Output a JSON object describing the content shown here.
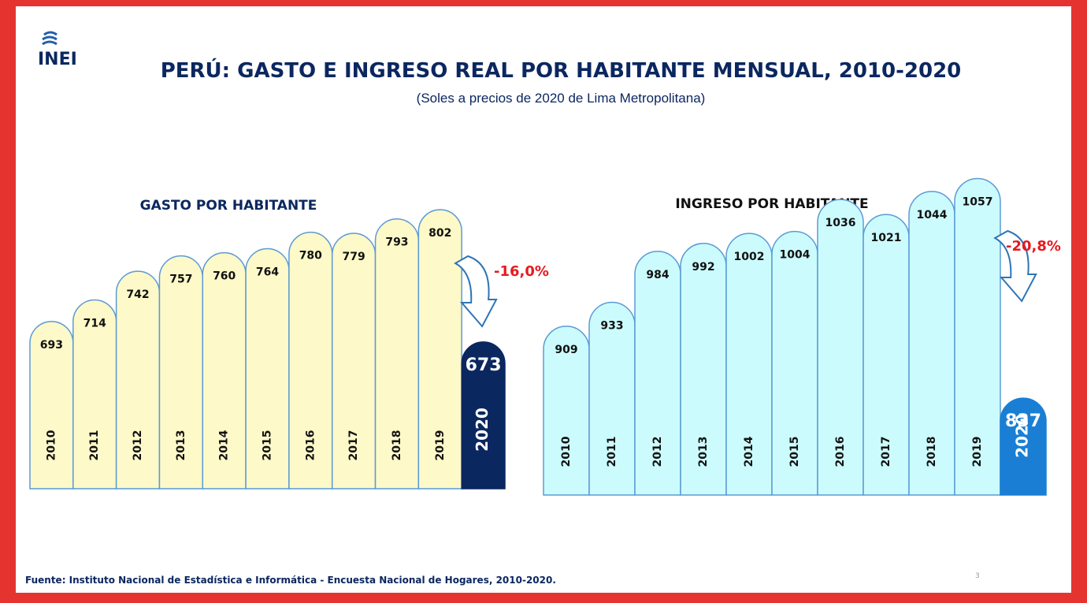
{
  "logo": "INEI",
  "title": "PERÚ: GASTO E INGRESO REAL POR HABITANTE MENSUAL, 2010-2020",
  "subtitle": "(Soles a precios de 2020 de Lima Metropolitana)",
  "footer": "Fuente: Instituto Nacional de Estadística e Informática - Encuesta Nacional de Hogares, 2010-2020.",
  "page_number": "3",
  "chart_data": [
    {
      "type": "bar",
      "title": "GASTO POR HABITANTE",
      "categories": [
        "2010",
        "2011",
        "2012",
        "2013",
        "2014",
        "2015",
        "2016",
        "2017",
        "2018",
        "2019",
        "2020"
      ],
      "values": [
        693,
        714,
        742,
        757,
        760,
        764,
        780,
        779,
        793,
        802,
        673
      ],
      "colors": [
        "#fdf9c8",
        "#fdf9c8",
        "#fdf9c8",
        "#fdf9c8",
        "#fdf9c8",
        "#fdf9c8",
        "#fdf9c8",
        "#fdf9c8",
        "#fdf9c8",
        "#fdf9c8",
        "#0b2760"
      ],
      "ylim": [
        530,
        822
      ],
      "annotation": "-16,0%"
    },
    {
      "type": "bar",
      "title": "INGRESO POR HABITANTE",
      "categories": [
        "2010",
        "2011",
        "2012",
        "2013",
        "2014",
        "2015",
        "2016",
        "2017",
        "2018",
        "2019",
        "2020"
      ],
      "values": [
        909,
        933,
        984,
        992,
        1002,
        1004,
        1036,
        1021,
        1044,
        1057,
        837
      ],
      "colors": [
        "#ccfbfd",
        "#ccfbfd",
        "#ccfbfd",
        "#ccfbfd",
        "#ccfbfd",
        "#ccfbfd",
        "#ccfbfd",
        "#ccfbfd",
        "#ccfbfd",
        "#ccfbfd",
        "#1a7fd4"
      ],
      "ylim": [
        740,
        1070
      ],
      "annotation": "-20,8%"
    }
  ]
}
